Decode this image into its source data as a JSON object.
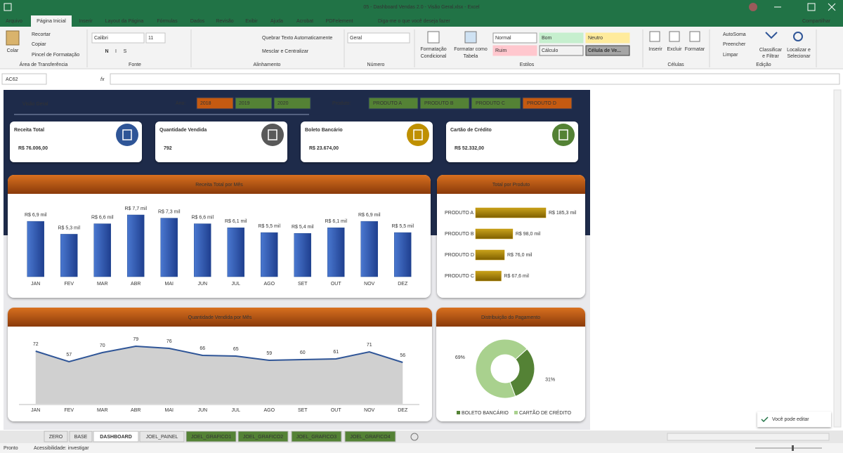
{
  "window": {
    "title": "05 - Dashboard Vendas 2.0 - Visão Geral.xlsx  -  Excel",
    "share": "Compartilhar"
  },
  "menu": [
    "Arquivo",
    "Página Inicial",
    "Inserir",
    "Layout da Página",
    "Fórmulas",
    "Dados",
    "Revisão",
    "Exibir",
    "Ajuda",
    "Acrobat",
    "PDFelement"
  ],
  "tell_me": "Diga-me o que você deseja fazer",
  "ribbon": {
    "clipboard": {
      "paste": "Colar",
      "cut": "Recortar",
      "copy": "Copiar",
      "painter": "Pincel de Formatação",
      "group": "Área de Transferência"
    },
    "font": {
      "name": "Calibri",
      "size": "11",
      "bold": "N",
      "italic": "I",
      "underline": "S",
      "group": "Fonte"
    },
    "alignment": {
      "wrap": "Quebrar Texto Automaticamente",
      "merge": "Mesclar e Centralizar",
      "group": "Alinhamento"
    },
    "number": {
      "format": "Geral",
      "group": "Número"
    },
    "styles": {
      "conditional": [
        "Formatação",
        "Condicional"
      ],
      "table": [
        "Formatar como",
        "Tabela"
      ],
      "cells": [
        "Normal",
        "Bom",
        "Neutro",
        "Ruim",
        "Cálculo",
        "Célula de Ve..."
      ],
      "group": "Estilos"
    },
    "cells": {
      "insert": "Inserir",
      "delete": "Excluir",
      "format": "Formatar",
      "group": "Células"
    },
    "editing": {
      "autosum": "AutoSoma",
      "fill": "Preencher",
      "clear": "Limpar",
      "sort": [
        "Classificar",
        "e Filtrar"
      ],
      "find": [
        "Localizar e",
        "Selecionar"
      ],
      "group": "Edição"
    }
  },
  "formula_bar": {
    "name_box": "AC62",
    "fx": "fx"
  },
  "dashboard": {
    "title": "Visão Geral",
    "year_label": "Ano:",
    "years": [
      "2018",
      "2019",
      "2020"
    ],
    "product_label": "Produto:",
    "products": [
      "PRODUTO A",
      "PRODUTO B",
      "PRODUTO C",
      "PRODUTO D"
    ],
    "kpis": [
      {
        "label": "Receita Total",
        "value": "R$ 76.006,00"
      },
      {
        "label": "Quantidade Vendida",
        "value": 792
      },
      {
        "label": "Boleto Bancário",
        "value": "R$ 23.674,00"
      },
      {
        "label": "Cartão de Crédito",
        "value": "R$ 52.332,00"
      }
    ]
  },
  "chart_data": [
    {
      "type": "bar",
      "title": "Receita Total por Mês",
      "categories": [
        "JAN",
        "FEV",
        "MAR",
        "ABR",
        "MAI",
        "JUN",
        "JUL",
        "AGO",
        "SET",
        "OUT",
        "NOV",
        "DEZ"
      ],
      "values": [
        6.9,
        5.3,
        6.6,
        7.7,
        7.3,
        6.6,
        6.1,
        5.5,
        5.4,
        6.1,
        6.9,
        5.5
      ],
      "value_labels": [
        "R$ 6,9 mil",
        "R$ 5,3 mil",
        "R$ 6,6 mil",
        "R$ 7,7 mil",
        "R$ 7,3 mil",
        "R$ 6,6 mil",
        "R$ 6,1 mil",
        "R$ 5,5 mil",
        "R$ 5,4 mil",
        "R$ 6,1 mil",
        "R$ 6,9 mil",
        "R$ 5,5 mil"
      ],
      "color": "#2f5597"
    },
    {
      "type": "hbar",
      "title": "Total por Produto",
      "categories": [
        "PRODUTO A",
        "PRODUTO B",
        "PRODUTO D",
        "PRODUTO C"
      ],
      "values": [
        185.3,
        98.0,
        76.0,
        67.6
      ],
      "value_labels": [
        "R$ 185,3 mil",
        "R$ 98,0 mil",
        "R$ 76,0 mil",
        "R$ 67,6 mil"
      ],
      "color": "#bf9000"
    },
    {
      "type": "area",
      "title": "Quantidade Vendida por Mês",
      "categories": [
        "JAN",
        "FEV",
        "MAR",
        "ABR",
        "MAI",
        "JUN",
        "JUL",
        "AGO",
        "SET",
        "OUT",
        "NOV",
        "DEZ"
      ],
      "values": [
        72,
        57,
        70,
        79,
        76,
        66,
        65,
        59,
        60,
        61,
        71,
        56
      ],
      "color": "#2f5597",
      "fill": "#d0d0d0"
    },
    {
      "type": "donut",
      "title": "Distribuição do Pagamento",
      "categories": [
        "BOLETO BANCÁRIO",
        "CARTÃO DE CRÉDITO"
      ],
      "values": [
        31,
        69
      ],
      "value_labels": [
        "31%",
        "69%"
      ],
      "colors": [
        "#548235",
        "#a9d18e"
      ]
    }
  ],
  "sheets": [
    "ZERO",
    "BASE",
    "DASHBOARD",
    "JOEL_PAINEL",
    "JOEL_GRAFICO1",
    "JOEL_GRAFICO2",
    "JOEL_GRAFICO3",
    "JOEL_GRAFICO4"
  ],
  "status": {
    "ready": "Pronto",
    "accessibility": "Acessibilidade: investigar",
    "toast": "Você pode editar"
  }
}
